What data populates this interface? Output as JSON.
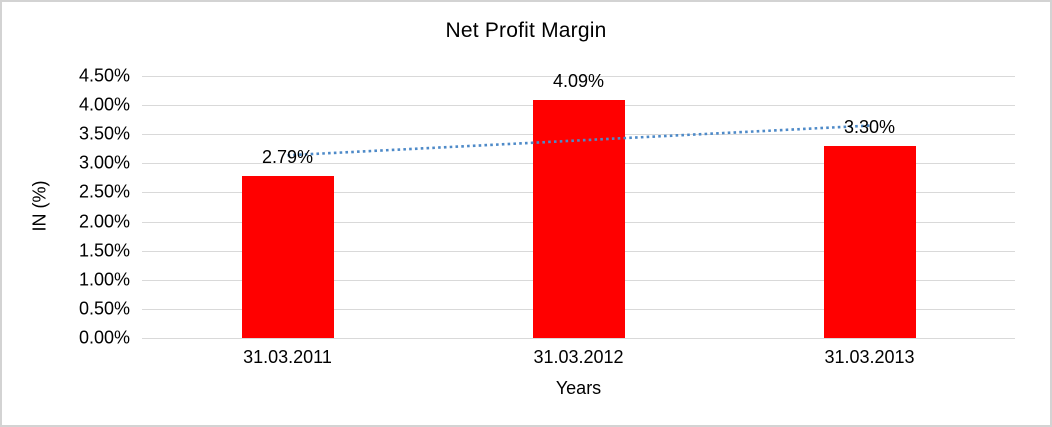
{
  "window": {
    "background": "#ffffff",
    "frame_border_color": "#d3d3d3"
  },
  "chart_data": {
    "type": "bar",
    "title": "Net Profit Margin",
    "categories": [
      "31.03.2011",
      "31.03.2012",
      "31.03.2013"
    ],
    "values": [
      2.79,
      4.09,
      3.3
    ],
    "data_labels": [
      "2.79%",
      "4.09%",
      "3.30%"
    ],
    "xlabel": "Years",
    "ylabel": "IN (%)",
    "ylim": [
      0,
      4.5
    ],
    "ytick_step": 0.5,
    "ytick_labels": [
      "0.00%",
      "0.50%",
      "1.00%",
      "1.50%",
      "2.00%",
      "2.50%",
      "3.00%",
      "3.50%",
      "4.00%",
      "4.50%"
    ],
    "grid": true,
    "legend": "none",
    "bar_color": "#ff0000",
    "gridline_color": "#d9d9d9",
    "axis_text_color": "#000000",
    "trendline": {
      "type": "linear",
      "style": "dotted",
      "color": "#4e8ac8"
    }
  }
}
